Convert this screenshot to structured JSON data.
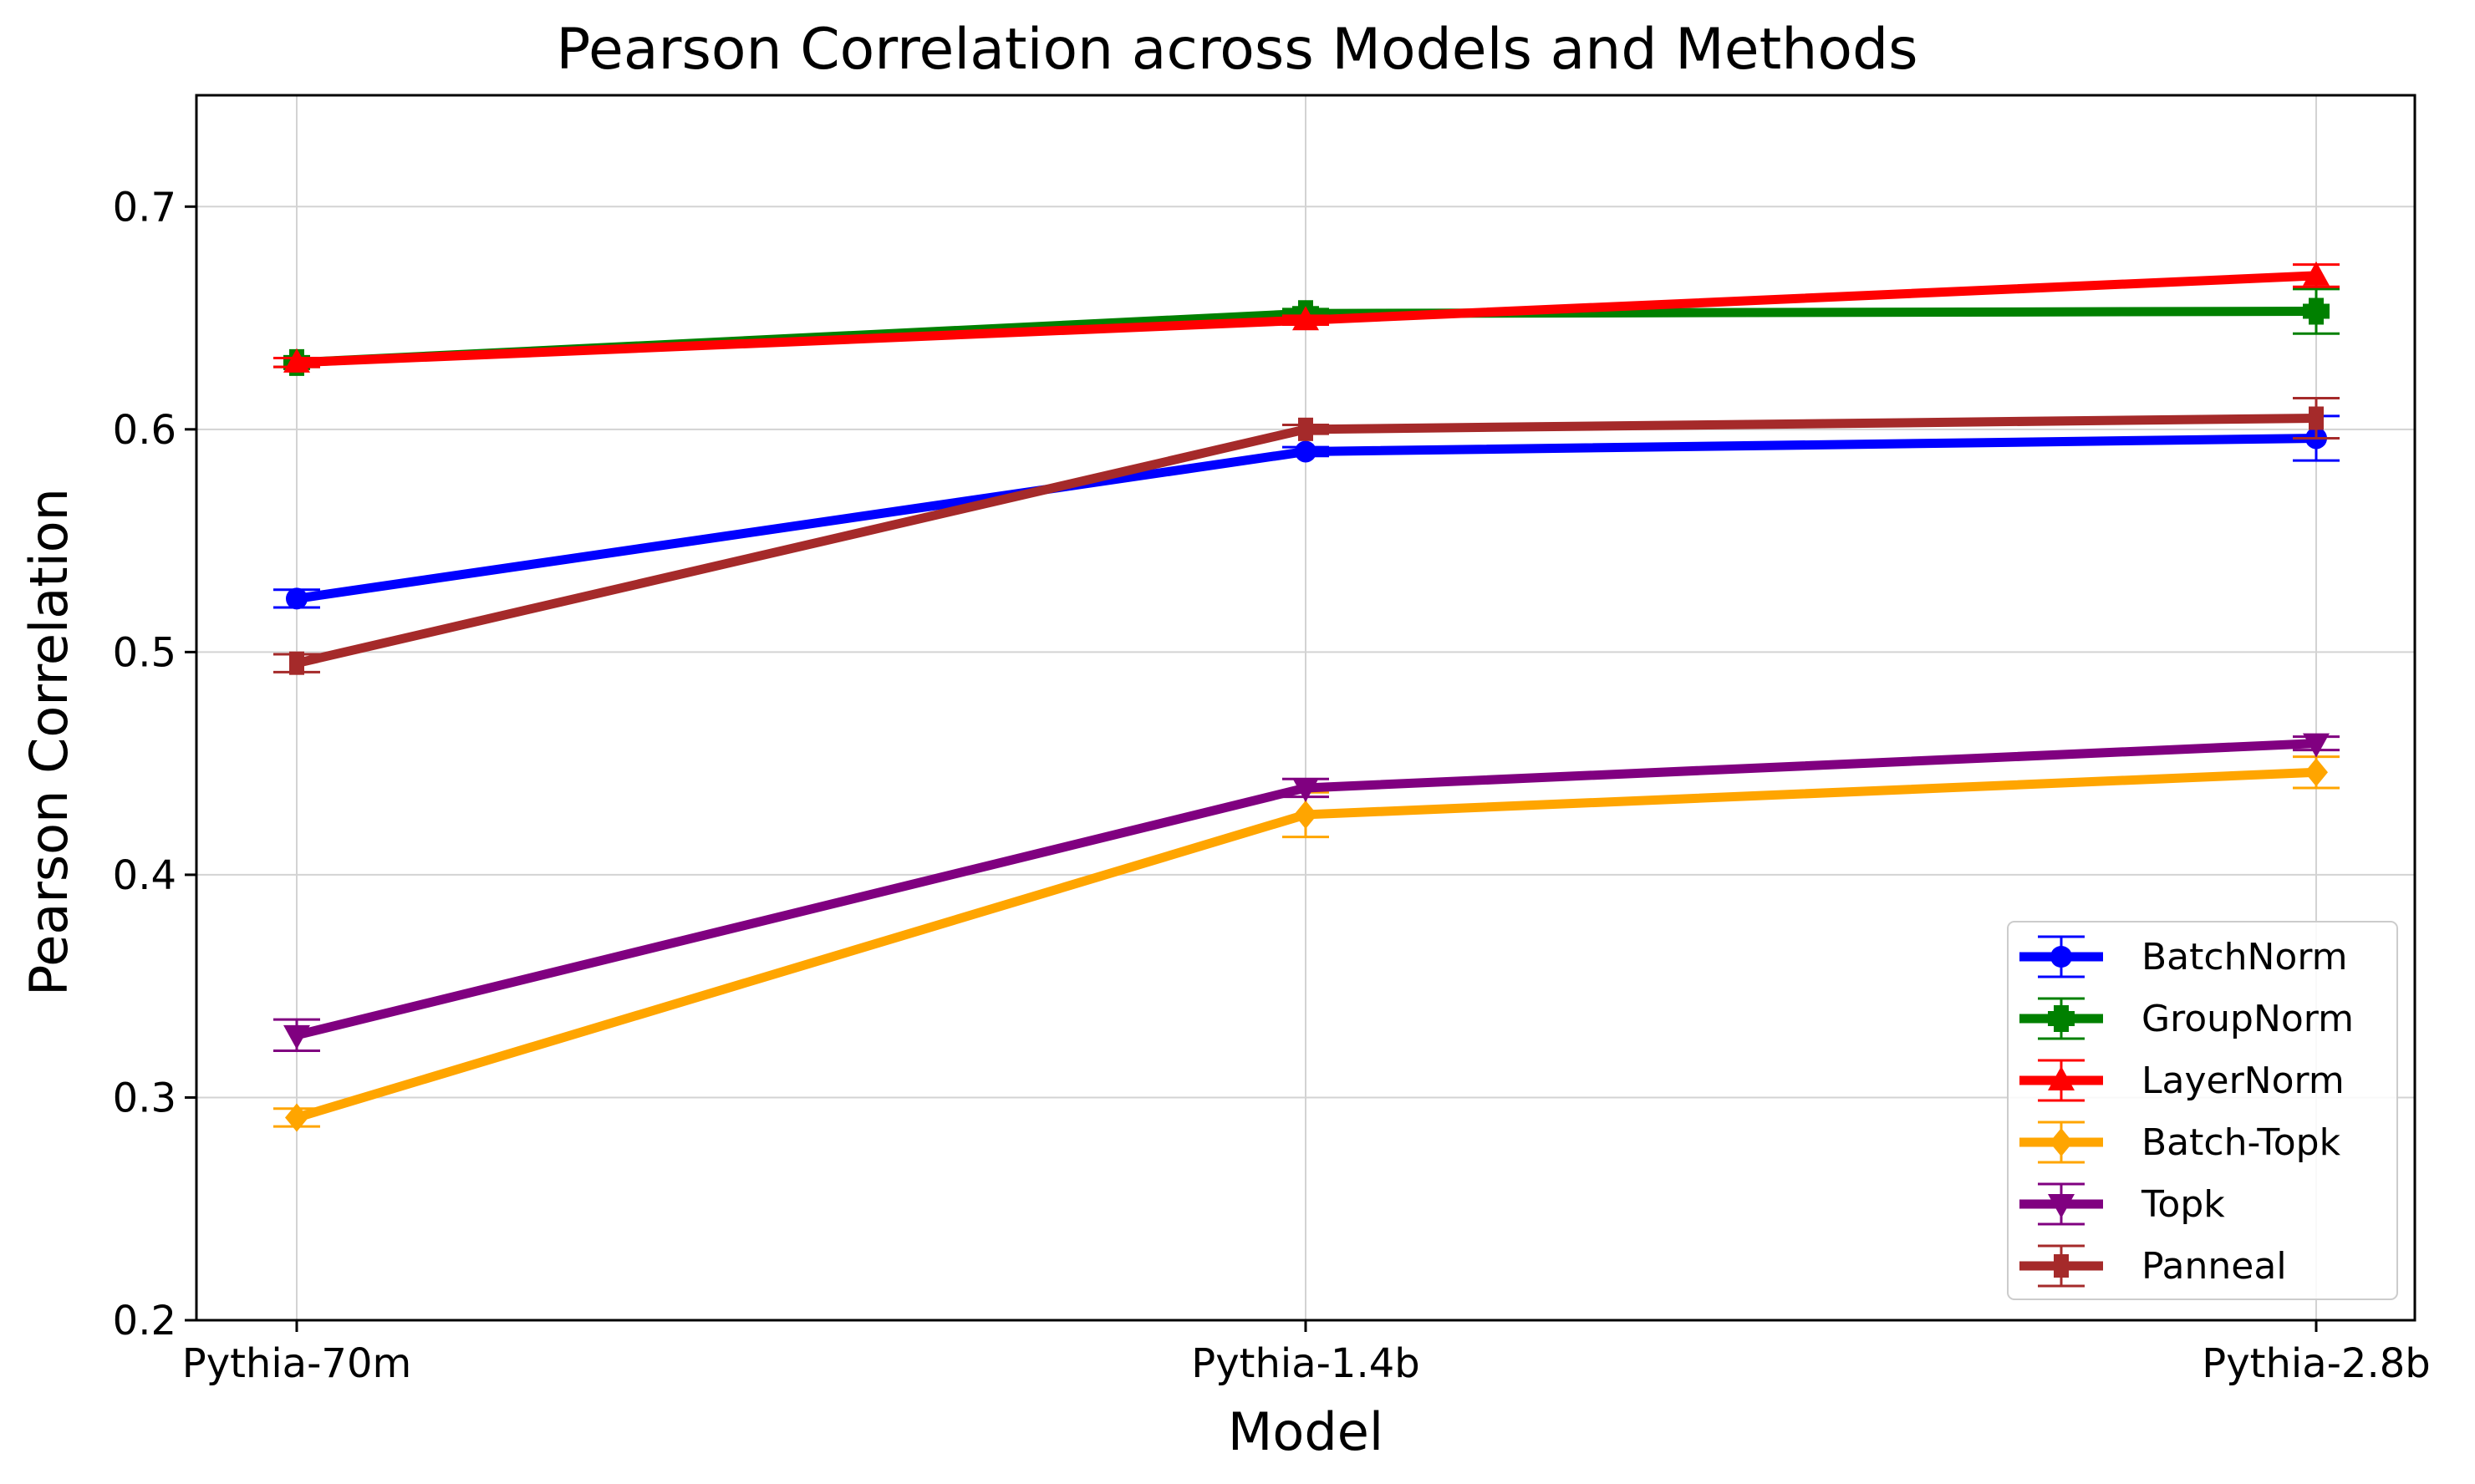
{
  "chart_data": {
    "type": "line",
    "title": "Pearson Correlation across Models and Methods",
    "xlabel": "Model",
    "ylabel": "Pearson Correlation",
    "categories": [
      "Pythia-70m",
      "Pythia-1.4b",
      "Pythia-2.8b"
    ],
    "ylim": [
      0.2,
      0.75
    ],
    "yticks": [
      0.2,
      0.3,
      0.4,
      0.5,
      0.6,
      0.7
    ],
    "ytick_labels": [
      "0.2",
      "0.3",
      "0.4",
      "0.5",
      "0.6",
      "0.7"
    ],
    "grid": true,
    "legend_position": "lower-right",
    "series": [
      {
        "name": "BatchNorm",
        "color": "#0000ff",
        "marker": "circle",
        "values": [
          0.524,
          0.59,
          0.596
        ],
        "errors": [
          0.004,
          0.002,
          0.01
        ]
      },
      {
        "name": "GroupNorm",
        "color": "#008000",
        "marker": "plus",
        "values": [
          0.63,
          0.652,
          0.653
        ],
        "errors": [
          0.002,
          0.002,
          0.01
        ]
      },
      {
        "name": "LayerNorm",
        "color": "#ff0000",
        "marker": "triangle-up",
        "values": [
          0.63,
          0.649,
          0.669
        ],
        "errors": [
          0.002,
          0.002,
          0.005
        ]
      },
      {
        "name": "Batch-Topk",
        "color": "#ffa500",
        "marker": "diamond",
        "values": [
          0.291,
          0.427,
          0.446
        ],
        "errors": [
          0.004,
          0.01,
          0.007
        ]
      },
      {
        "name": "Topk",
        "color": "#800080",
        "marker": "triangle-down",
        "values": [
          0.328,
          0.439,
          0.459
        ],
        "errors": [
          0.007,
          0.004,
          0.003
        ]
      },
      {
        "name": "Panneal",
        "color": "#a52a2a",
        "marker": "tick",
        "values": [
          0.495,
          0.6,
          0.605
        ],
        "errors": [
          0.004,
          0.002,
          0.009
        ]
      }
    ]
  }
}
